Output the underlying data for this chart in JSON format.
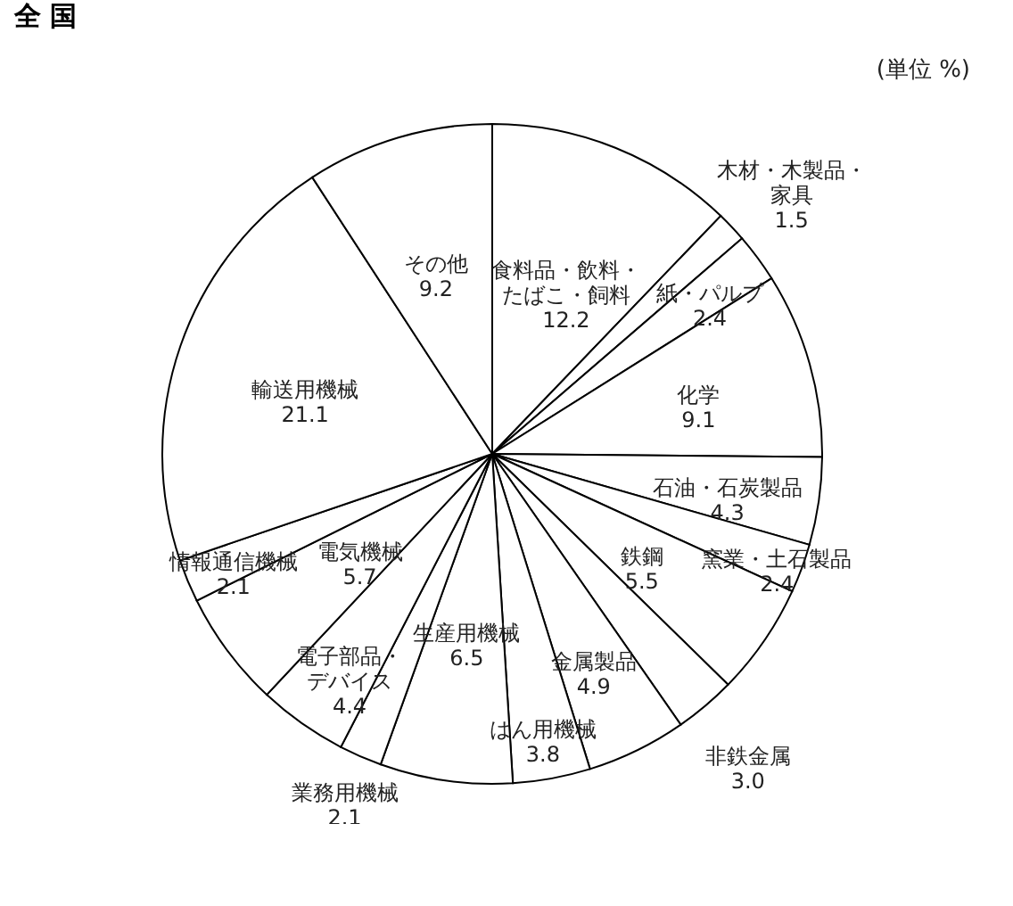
{
  "chart_data": {
    "type": "pie",
    "title": "全 国",
    "annotations": [
      "(単位 %)"
    ],
    "categories": [
      "食料品・飲料・たばこ・飼料",
      "木材・木製品・家具",
      "紙・パルプ",
      "化学",
      "石油・石炭製品",
      "窯業・土石製品",
      "鉄鋼",
      "非鉄金属",
      "金属製品",
      "はん用機械",
      "生産用機械",
      "業務用機械",
      "電子部品・デバイス",
      "電気機械",
      "情報通信機械",
      "輸送用機械",
      "その他"
    ],
    "values": [
      12.2,
      1.5,
      2.4,
      9.1,
      4.3,
      2.4,
      5.5,
      3.0,
      4.9,
      3.8,
      6.5,
      2.1,
      4.4,
      5.7,
      2.1,
      21.1,
      9.2
    ],
    "value_labels": [
      "12.2",
      "1.5",
      "2.4",
      "9.1",
      "4.3",
      "2.4",
      "5.5",
      "3.0",
      "4.9",
      "3.8",
      "6.5",
      "2.1",
      "4.4",
      "5.7",
      "2.1",
      "21.1",
      "9.2"
    ],
    "colors": [
      "#ffffff",
      "#ffffff",
      "#ffffff",
      "#ffffff",
      "#ffffff",
      "#ffffff",
      "#ffffff",
      "#ffffff",
      "#ffffff",
      "#ffffff",
      "#ffffff",
      "#ffffff",
      "#ffffff",
      "#ffffff",
      "#ffffff",
      "#ffffff",
      "#ffffff"
    ]
  }
}
